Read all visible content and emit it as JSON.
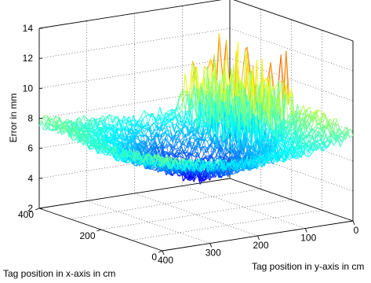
{
  "chart_data": {
    "type": "surface",
    "zlabel": "Error in mm",
    "xlabel": "Tag position in x-axis in cm",
    "ylabel": "Tag position in y-axis in cm",
    "zlim": [
      2,
      14
    ],
    "z_ticks": [
      "2",
      "4",
      "6",
      "8",
      "10",
      "12",
      "14"
    ],
    "xlim": [
      0,
      400
    ],
    "x_ticks": [
      "0",
      "200",
      "400"
    ],
    "ylim": [
      0,
      400
    ],
    "y_ticks": [
      "0",
      "100",
      "200",
      "300",
      "400"
    ],
    "grid": true,
    "colormap": "jet",
    "surface_profile": {
      "description_points_x_cm": [
        0,
        100,
        200,
        300,
        400
      ],
      "description_points_y_cm": [
        0,
        100,
        200,
        300,
        400
      ],
      "error_mm_grid": [
        [
          7.6,
          7.1,
          6.9,
          7.2,
          7.9
        ],
        [
          8.4,
          6.6,
          5.6,
          6.4,
          7.6
        ],
        [
          8.0,
          6.1,
          4.4,
          5.9,
          7.3
        ],
        [
          7.6,
          6.6,
          5.4,
          6.6,
          7.7
        ],
        [
          7.4,
          7.2,
          7.0,
          7.3,
          7.8
        ]
      ],
      "noise_amplitude_mm": 0.9,
      "high_noise_region": "y near 0-100 cm, x near 200-400 cm, peaks to about 12.5 mm"
    }
  }
}
